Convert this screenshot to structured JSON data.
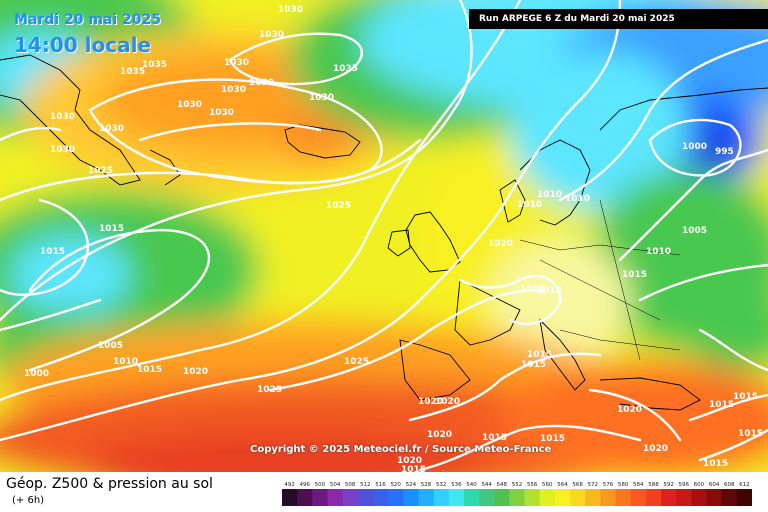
{
  "header": {
    "date": "Mardi 20 mai 2025",
    "time": "14:00 locale",
    "run": "Run ARPEGE 6 Z du Mardi 20 mai 2025"
  },
  "copyright": "Copyright © 2025 Meteociel.fr / Source Meteo-France",
  "footer": {
    "title": "Géop. Z500 & pression au sol",
    "subtitle": "(+ 6h)"
  },
  "colors": {
    "blue": "#3aa0ff",
    "cyan": "#5ce6ff",
    "green": "#48c850",
    "yellow": "#f0f020",
    "orange": "#ff9a20",
    "red": "#f25a20"
  },
  "isobar_labels": [
    {
      "id": "l1",
      "text": "1030"
    },
    {
      "id": "l2",
      "text": "1030"
    },
    {
      "id": "l3",
      "text": "1035"
    },
    {
      "id": "l4",
      "text": "1035"
    },
    {
      "id": "l5",
      "text": "1030"
    },
    {
      "id": "l6",
      "text": "1030"
    },
    {
      "id": "l7",
      "text": "1030"
    },
    {
      "id": "l8",
      "text": "1030"
    },
    {
      "id": "l9",
      "text": "1035"
    },
    {
      "id": "l10",
      "text": "1030"
    },
    {
      "id": "l11",
      "text": "1030"
    },
    {
      "id": "l12",
      "text": "1030"
    },
    {
      "id": "l13",
      "text": "1030"
    },
    {
      "id": "l14",
      "text": "1030"
    },
    {
      "id": "l15",
      "text": "1025"
    },
    {
      "id": "l16",
      "text": "1025"
    },
    {
      "id": "l17",
      "text": "1015"
    },
    {
      "id": "l18",
      "text": "1015"
    },
    {
      "id": "l19",
      "text": "1020"
    },
    {
      "id": "l20",
      "text": "1010"
    },
    {
      "id": "l21",
      "text": "1010"
    },
    {
      "id": "l22",
      "text": "1010"
    },
    {
      "id": "l23",
      "text": "1000"
    },
    {
      "id": "l24",
      "text": "995"
    },
    {
      "id": "l25",
      "text": "1005"
    },
    {
      "id": "l26",
      "text": "1010"
    },
    {
      "id": "l27",
      "text": "1015"
    },
    {
      "id": "l28",
      "text": "1015"
    },
    {
      "id": "l29",
      "text": "1005"
    },
    {
      "id": "l30",
      "text": "1010"
    },
    {
      "id": "l31",
      "text": "1015"
    },
    {
      "id": "l32",
      "text": "1000"
    },
    {
      "id": "l33",
      "text": "1020"
    },
    {
      "id": "l34",
      "text": "1025"
    },
    {
      "id": "l35",
      "text": "1025"
    },
    {
      "id": "l36",
      "text": "1015"
    },
    {
      "id": "l37",
      "text": "1015"
    },
    {
      "id": "l38",
      "text": "1020"
    },
    {
      "id": "l39",
      "text": "1020"
    },
    {
      "id": "l40",
      "text": "1020"
    },
    {
      "id": "l41",
      "text": "1015"
    },
    {
      "id": "l42",
      "text": "1015"
    },
    {
      "id": "l43",
      "text": "1020"
    },
    {
      "id": "l44",
      "text": "1020"
    },
    {
      "id": "l45",
      "text": "1015"
    },
    {
      "id": "l46",
      "text": "1015"
    },
    {
      "id": "l47",
      "text": "1015"
    },
    {
      "id": "l48",
      "text": "1015"
    },
    {
      "id": "l49",
      "text": "1015"
    },
    {
      "id": "l50",
      "text": "1020"
    },
    {
      "id": "l51",
      "text": "1015"
    }
  ],
  "legend": {
    "labels": [
      "492",
      "496",
      "500",
      "504",
      "508",
      "512",
      "516",
      "520",
      "524",
      "528",
      "532",
      "536",
      "540",
      "544",
      "548",
      "552",
      "556",
      "560",
      "564",
      "568",
      "572",
      "576",
      "580",
      "584",
      "588",
      "592",
      "596",
      "600",
      "604",
      "608",
      "612"
    ],
    "colors": [
      "#2a0a2a",
      "#4a1050",
      "#6a1a80",
      "#8a2aa8",
      "#7a40c8",
      "#5050d8",
      "#3a60e8",
      "#2a70ff",
      "#1a90ff",
      "#20b0ff",
      "#30d0ff",
      "#40e8f0",
      "#30d8b0",
      "#40c880",
      "#50c050",
      "#80d040",
      "#b0e030",
      "#e0f020",
      "#f8f020",
      "#f8d820",
      "#f8b820",
      "#f89820",
      "#f87820",
      "#f85820",
      "#f04020",
      "#e02020",
      "#c81818",
      "#a81010",
      "#880a0a",
      "#600808",
      "#400404"
    ]
  }
}
